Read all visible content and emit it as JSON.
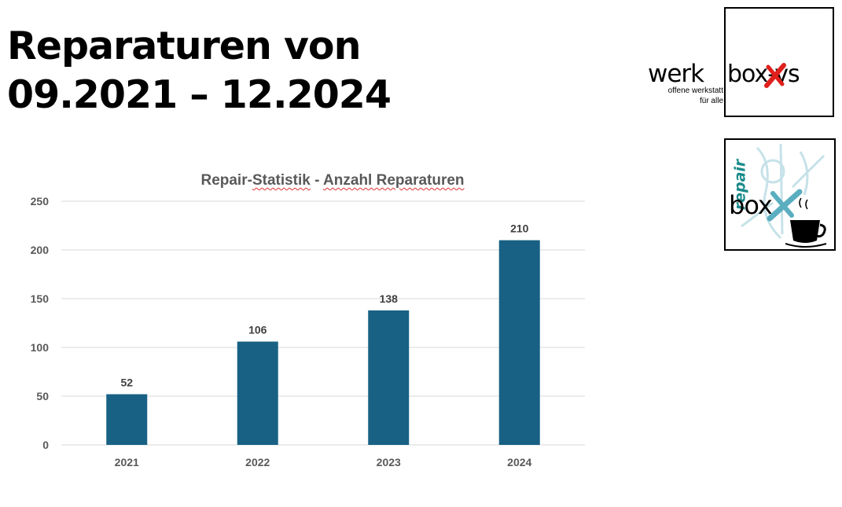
{
  "slide": {
    "title_line1": "Reparaturen von",
    "title_line2": "09.2021 – 12.2024"
  },
  "logos": {
    "werkbox": {
      "word": "werk",
      "box_text": "box-vs",
      "subline1": "offene werkstatt",
      "subline2": "für alle",
      "accent": "#e0201c"
    },
    "repairbox": {
      "repair_word": "repair",
      "box_text": "box",
      "accent": "#1a8a8a"
    }
  },
  "chart_data": {
    "type": "bar",
    "title_part1": "Repair-",
    "title_part2": "Statistik",
    "title_part3": " - ",
    "title_part4": "Anzahl Reparaturen",
    "categories": [
      "2021",
      "2022",
      "2023",
      "2024"
    ],
    "values": [
      52,
      106,
      138,
      210
    ],
    "ylim": [
      0,
      250
    ],
    "yticks": [
      0,
      50,
      100,
      150,
      200,
      250
    ],
    "grid": true,
    "bar_color": "#186184",
    "xlabel": "",
    "ylabel": ""
  }
}
